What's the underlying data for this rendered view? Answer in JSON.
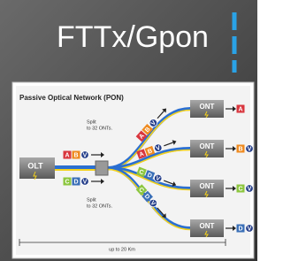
{
  "title": "FTTx/Gpon",
  "diagram": {
    "title": "Passive Optical Network (PON)",
    "split_notes": [
      [
        "Split",
        "to 32 ONTs."
      ],
      [
        "Split",
        "to 32 ONTs."
      ]
    ],
    "olt": "OLT",
    "downstream": [
      [
        {
          "t": "A",
          "c": "#d9363e",
          "shape": "square"
        },
        {
          "t": "B",
          "c": "#ef8a1f",
          "shape": "square"
        },
        {
          "t": "V",
          "c": "#27408b",
          "shape": "circle"
        }
      ],
      [
        {
          "t": "C",
          "c": "#8cc63f",
          "shape": "square"
        },
        {
          "t": "D",
          "c": "#3a6fb7",
          "shape": "square"
        },
        {
          "t": "V",
          "c": "#27408b",
          "shape": "circle"
        }
      ]
    ],
    "branches": [
      {
        "packet": [
          {
            "t": "A",
            "c": "#d9363e",
            "shape": "square"
          },
          {
            "t": "B",
            "c": "#ef8a1f",
            "shape": "square"
          },
          {
            "t": "V",
            "c": "#27408b",
            "shape": "circle"
          }
        ],
        "ont": "ONT",
        "output": [
          {
            "t": "A",
            "c": "#d9363e",
            "shape": "square"
          }
        ]
      },
      {
        "packet": [
          {
            "t": "A",
            "c": "#d9363e",
            "shape": "square"
          },
          {
            "t": "B",
            "c": "#ef8a1f",
            "shape": "square"
          },
          {
            "t": "V",
            "c": "#27408b",
            "shape": "circle"
          }
        ],
        "ont": "ONT",
        "output": [
          {
            "t": "B",
            "c": "#ef8a1f",
            "shape": "square"
          },
          {
            "t": "V",
            "c": "#27408b",
            "shape": "circle"
          }
        ]
      },
      {
        "packet": [
          {
            "t": "C",
            "c": "#8cc63f",
            "shape": "square"
          },
          {
            "t": "D",
            "c": "#3a6fb7",
            "shape": "square"
          },
          {
            "t": "V",
            "c": "#27408b",
            "shape": "circle"
          }
        ],
        "ont": "ONT",
        "output": [
          {
            "t": "C",
            "c": "#8cc63f",
            "shape": "square"
          },
          {
            "t": "V",
            "c": "#27408b",
            "shape": "circle"
          }
        ]
      },
      {
        "packet": [
          {
            "t": "C",
            "c": "#8cc63f",
            "shape": "square"
          },
          {
            "t": "D",
            "c": "#3a6fb7",
            "shape": "square"
          },
          {
            "t": "V",
            "c": "#27408b",
            "shape": "circle"
          }
        ],
        "ont": "ONT",
        "output": [
          {
            "t": "D",
            "c": "#3a6fb7",
            "shape": "square"
          },
          {
            "t": "V",
            "c": "#27408b",
            "shape": "circle"
          }
        ]
      }
    ],
    "distance": "up to 20 Km"
  }
}
